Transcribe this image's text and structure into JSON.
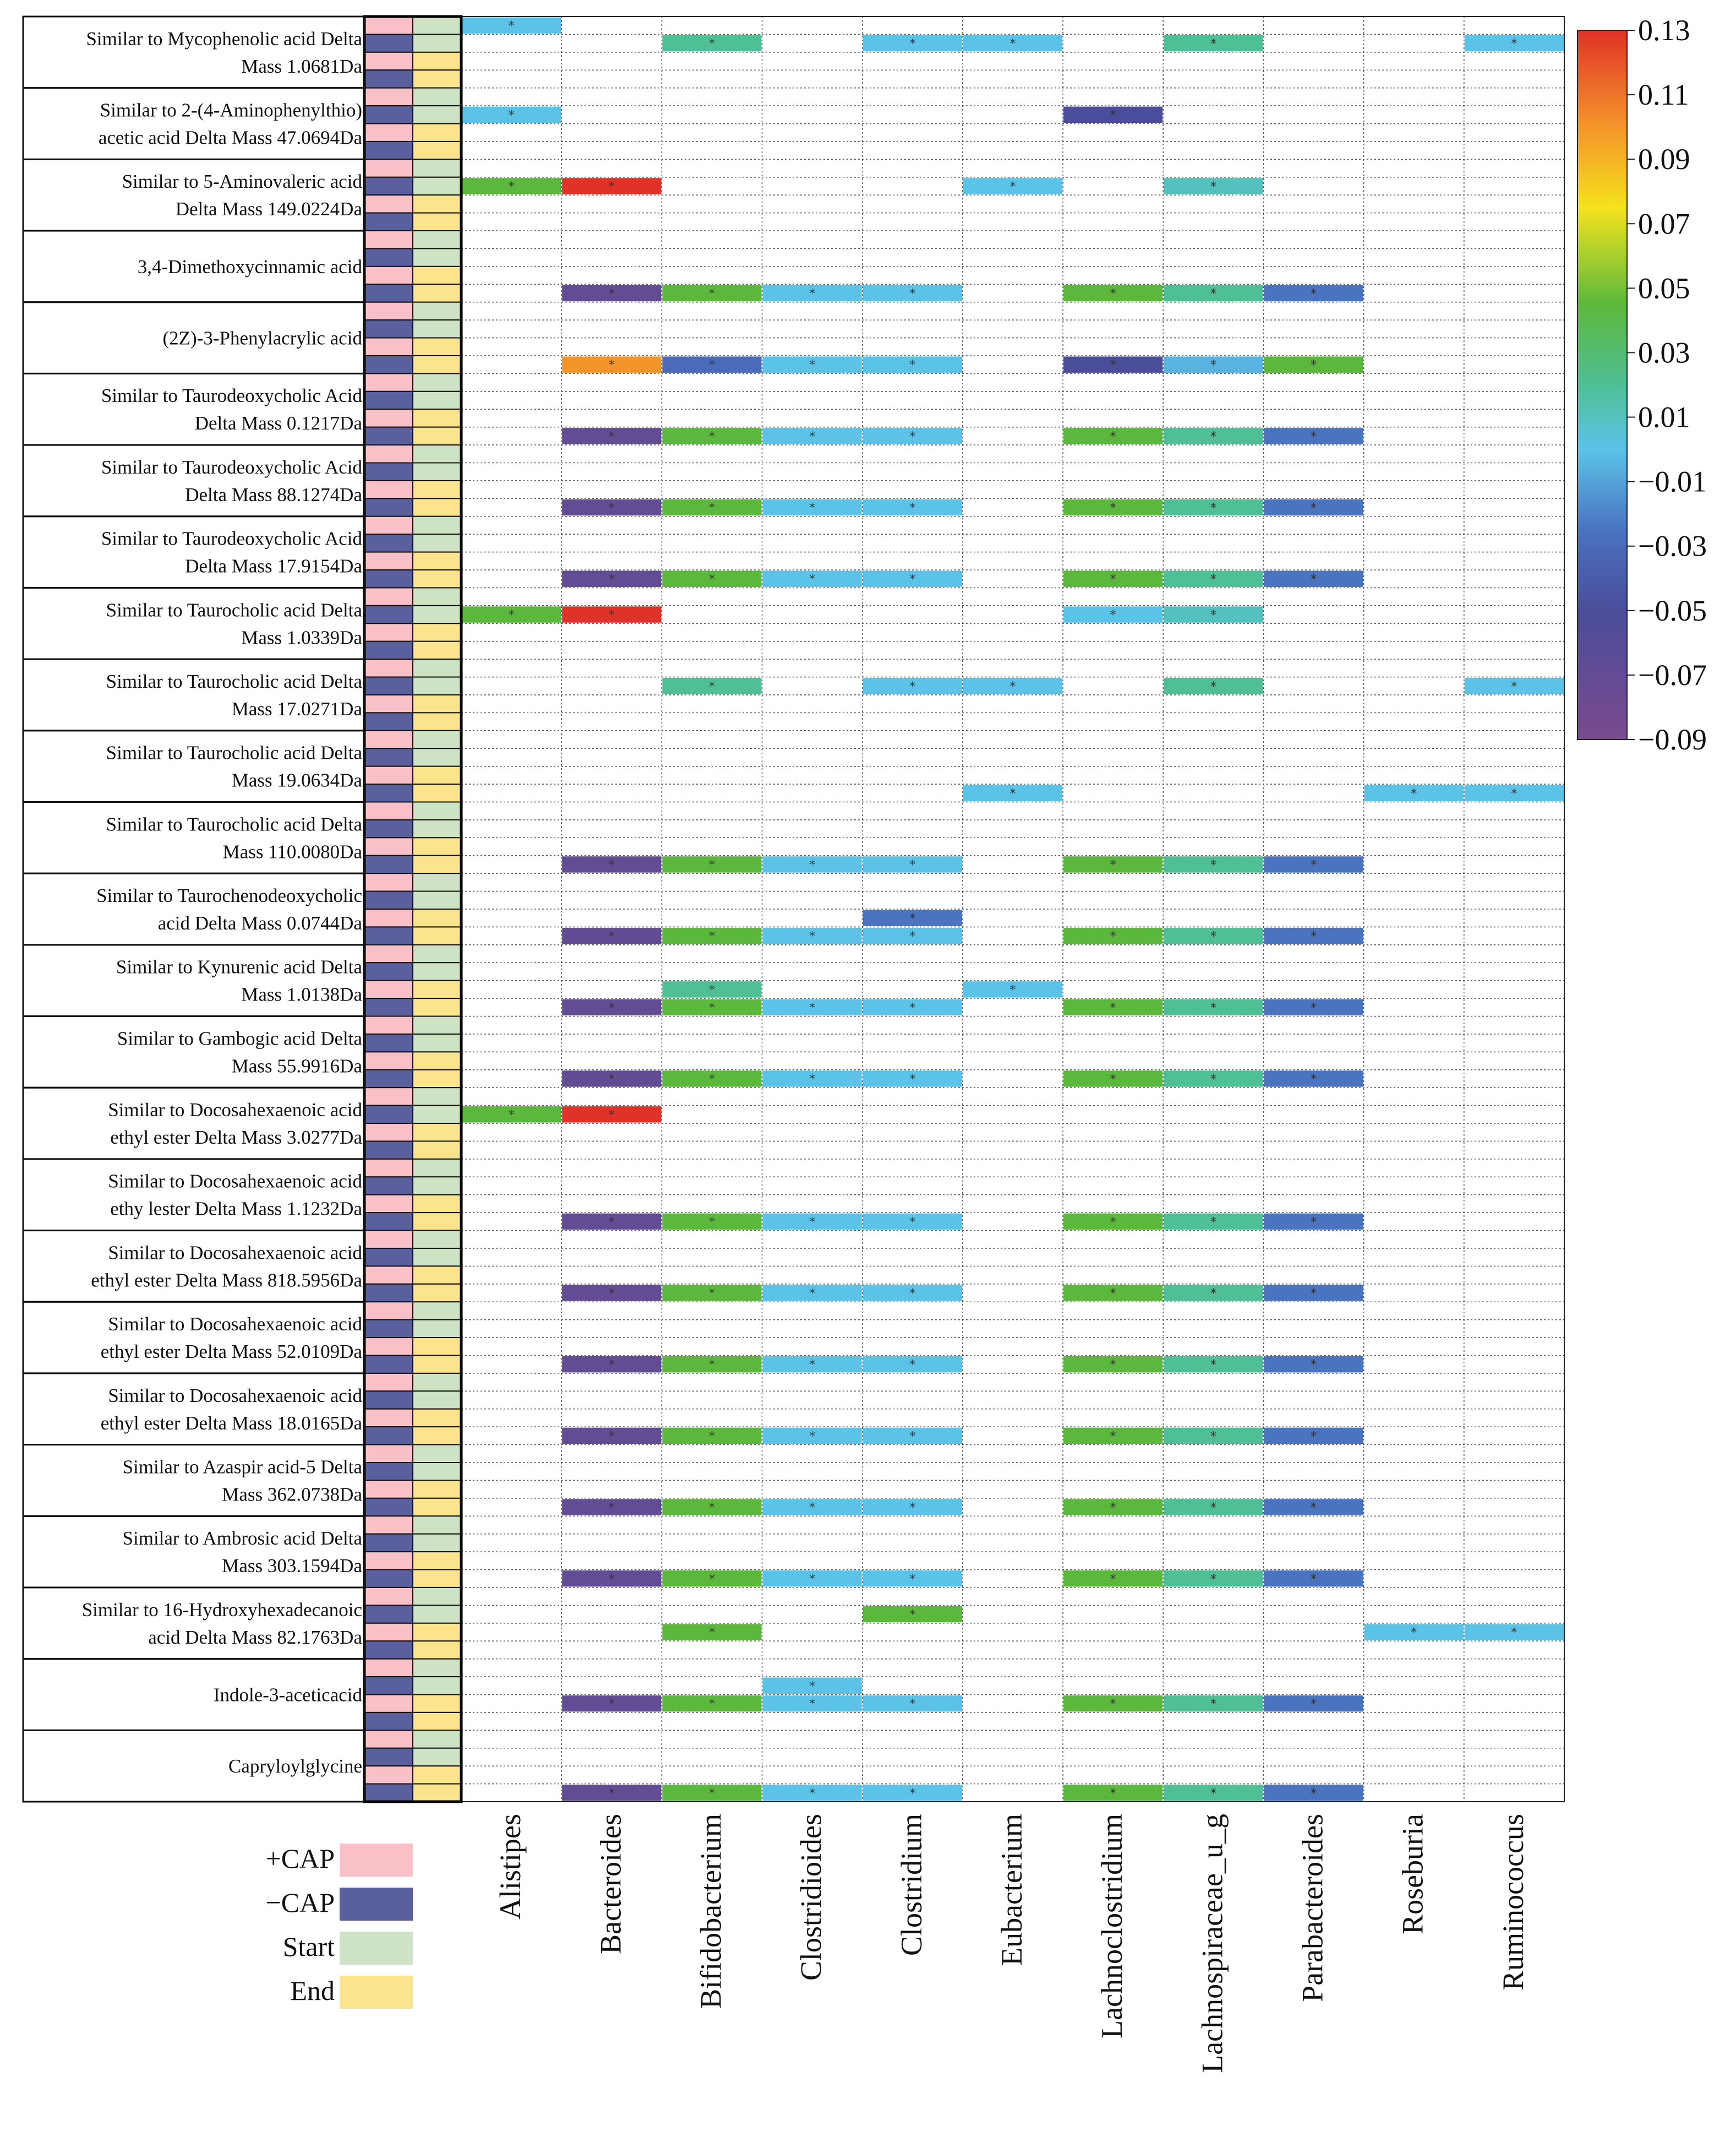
{
  "chart_data": {
    "type": "heatmap",
    "title": "",
    "metabolites": [
      [
        "Similar to Mycophenolic acid Delta",
        "Mass 1.0681Da"
      ],
      [
        "Similar to 2-(4-Aminophenylthio)",
        "acetic acid Delta Mass 47.0694Da"
      ],
      [
        "Similar to 5-Aminovaleric acid",
        "Delta Mass 149.0224Da"
      ],
      [
        "3,4-Dimethoxycinnamic acid"
      ],
      [
        "(2Z)-3-Phenylacrylic acid"
      ],
      [
        "Similar to Taurodeoxycholic Acid",
        "Delta Mass 0.1217Da"
      ],
      [
        "Similar to Taurodeoxycholic Acid",
        "Delta Mass 88.1274Da"
      ],
      [
        "Similar to Taurodeoxycholic Acid",
        "Delta Mass 17.9154Da"
      ],
      [
        "Similar to Taurocholic acid Delta",
        "Mass 1.0339Da"
      ],
      [
        "Similar to Taurocholic acid Delta",
        "Mass 17.0271Da"
      ],
      [
        "Similar to Taurocholic acid Delta",
        "Mass 19.0634Da"
      ],
      [
        "Similar to Taurocholic acid Delta",
        "Mass 110.0080Da"
      ],
      [
        "Similar to Taurochenodeoxycholic",
        "acid Delta Mass 0.0744Da"
      ],
      [
        "Similar to Kynurenic acid Delta",
        "Mass 1.0138Da"
      ],
      [
        "Similar to Gambogic acid Delta",
        "Mass 55.9916Da"
      ],
      [
        "Similar to Docosahexaenoic acid",
        "ethyl ester Delta Mass 3.0277Da"
      ],
      [
        "Similar to Docosahexaenoic acid",
        "ethy lester Delta Mass 1.1232Da"
      ],
      [
        "Similar to Docosahexaenoic acid",
        "ethyl ester Delta Mass 818.5956Da"
      ],
      [
        "Similar to Docosahexaenoic acid",
        "ethyl ester Delta Mass 52.0109Da"
      ],
      [
        "Similar to Docosahexaenoic acid",
        "ethyl ester Delta Mass 18.0165Da"
      ],
      [
        "Similar to Azaspir acid-5 Delta",
        "Mass 362.0738Da"
      ],
      [
        "Similar to  Ambrosic acid Delta",
        "Mass 303.1594Da"
      ],
      [
        "Similar to 16-Hydroxyhexadecanoic",
        "acid Delta Mass 82.1763Da"
      ],
      [
        "Indole-3-aceticacid"
      ],
      [
        "Capryloylglycine"
      ]
    ],
    "genera": [
      "Alistipes",
      "Bacteroides",
      "Bifidobacterium",
      "Clostridioides",
      "Clostridium",
      "Eubacterium",
      "Lachnoclostridium",
      "Lachnospiraceae_u_g",
      "Parabacteroides",
      "Roseburia",
      "Ruminococcus"
    ],
    "subrows_per_metabolite": 4,
    "row_groups": {
      "cap": [
        "+CAP",
        "-CAP",
        "+CAP",
        "-CAP"
      ],
      "time": [
        "Start",
        "Start",
        "End",
        "End"
      ]
    },
    "legend": [
      {
        "label": "+CAP",
        "color": "#f9c0c8"
      },
      {
        "label": "−CAP",
        "color": "#5a5f9e"
      },
      {
        "label": "Start",
        "color": "#cde3c3"
      },
      {
        "label": "End",
        "color": "#fbe48c"
      }
    ],
    "colorbar": {
      "min": -0.09,
      "max": 0.13,
      "ticks": [
        "0.13",
        "0.11",
        "0.09",
        "0.07",
        "0.05",
        "0.03",
        "0.01",
        "−0.01",
        "−0.03",
        "−0.05",
        "−0.07",
        "−0.09"
      ],
      "stops": [
        {
          "v": -0.09,
          "c": "#7a4a8e"
        },
        {
          "v": -0.05,
          "c": "#4a4d9a"
        },
        {
          "v": -0.025,
          "c": "#4a73c0"
        },
        {
          "v": 0.0,
          "c": "#5bc3e8"
        },
        {
          "v": 0.02,
          "c": "#4fbf96"
        },
        {
          "v": 0.045,
          "c": "#5cb83c"
        },
        {
          "v": 0.06,
          "c": "#a8cf2e"
        },
        {
          "v": 0.075,
          "c": "#f5e21c"
        },
        {
          "v": 0.1,
          "c": "#f4952a"
        },
        {
          "v": 0.13,
          "c": "#e03228"
        }
      ]
    },
    "significance_marker": "*",
    "cells": [
      {
        "m": 0,
        "r": 0,
        "g": 0,
        "v": 0.0
      },
      {
        "m": 0,
        "r": 1,
        "g": 2,
        "v": 0.02
      },
      {
        "m": 0,
        "r": 1,
        "g": 4,
        "v": 0.0
      },
      {
        "m": 0,
        "r": 1,
        "g": 5,
        "v": 0.0
      },
      {
        "m": 0,
        "r": 1,
        "g": 7,
        "v": 0.02
      },
      {
        "m": 0,
        "r": 1,
        "g": 10,
        "v": 0.0
      },
      {
        "m": 1,
        "r": 1,
        "g": 0,
        "v": 0.0
      },
      {
        "m": 1,
        "r": 1,
        "g": 6,
        "v": -0.05
      },
      {
        "m": 2,
        "r": 1,
        "g": 0,
        "v": 0.045
      },
      {
        "m": 2,
        "r": 1,
        "g": 1,
        "v": 0.13
      },
      {
        "m": 2,
        "r": 1,
        "g": 5,
        "v": 0.0
      },
      {
        "m": 2,
        "r": 1,
        "g": 7,
        "v": 0.01
      },
      {
        "m": 3,
        "r": 3,
        "g": 1,
        "v": -0.07
      },
      {
        "m": 3,
        "r": 3,
        "g": 2,
        "v": 0.045
      },
      {
        "m": 3,
        "r": 3,
        "g": 3,
        "v": 0.0
      },
      {
        "m": 3,
        "r": 3,
        "g": 4,
        "v": 0.0
      },
      {
        "m": 3,
        "r": 3,
        "g": 6,
        "v": 0.045
      },
      {
        "m": 3,
        "r": 3,
        "g": 7,
        "v": 0.02
      },
      {
        "m": 3,
        "r": 3,
        "g": 8,
        "v": -0.025
      },
      {
        "m": 4,
        "r": 3,
        "g": 1,
        "v": 0.1
      },
      {
        "m": 4,
        "r": 3,
        "g": 2,
        "v": -0.03
      },
      {
        "m": 4,
        "r": 3,
        "g": 3,
        "v": 0.0
      },
      {
        "m": 4,
        "r": 3,
        "g": 4,
        "v": 0.0
      },
      {
        "m": 4,
        "r": 3,
        "g": 6,
        "v": -0.05
      },
      {
        "m": 4,
        "r": 3,
        "g": 7,
        "v": -0.005
      },
      {
        "m": 4,
        "r": 3,
        "g": 8,
        "v": 0.045
      },
      {
        "m": 5,
        "r": 3,
        "g": 1,
        "v": -0.07
      },
      {
        "m": 5,
        "r": 3,
        "g": 2,
        "v": 0.045
      },
      {
        "m": 5,
        "r": 3,
        "g": 3,
        "v": 0.0
      },
      {
        "m": 5,
        "r": 3,
        "g": 4,
        "v": 0.0
      },
      {
        "m": 5,
        "r": 3,
        "g": 6,
        "v": 0.045
      },
      {
        "m": 5,
        "r": 3,
        "g": 7,
        "v": 0.02
      },
      {
        "m": 5,
        "r": 3,
        "g": 8,
        "v": -0.025
      },
      {
        "m": 6,
        "r": 3,
        "g": 1,
        "v": -0.07
      },
      {
        "m": 6,
        "r": 3,
        "g": 2,
        "v": 0.045
      },
      {
        "m": 6,
        "r": 3,
        "g": 3,
        "v": 0.0
      },
      {
        "m": 6,
        "r": 3,
        "g": 4,
        "v": 0.0
      },
      {
        "m": 6,
        "r": 3,
        "g": 6,
        "v": 0.045
      },
      {
        "m": 6,
        "r": 3,
        "g": 7,
        "v": 0.02
      },
      {
        "m": 6,
        "r": 3,
        "g": 8,
        "v": -0.025
      },
      {
        "m": 7,
        "r": 3,
        "g": 1,
        "v": -0.07
      },
      {
        "m": 7,
        "r": 3,
        "g": 2,
        "v": 0.045
      },
      {
        "m": 7,
        "r": 3,
        "g": 3,
        "v": 0.0
      },
      {
        "m": 7,
        "r": 3,
        "g": 4,
        "v": 0.0
      },
      {
        "m": 7,
        "r": 3,
        "g": 6,
        "v": 0.045
      },
      {
        "m": 7,
        "r": 3,
        "g": 7,
        "v": 0.02
      },
      {
        "m": 7,
        "r": 3,
        "g": 8,
        "v": -0.025
      },
      {
        "m": 8,
        "r": 1,
        "g": 0,
        "v": 0.045
      },
      {
        "m": 8,
        "r": 1,
        "g": 1,
        "v": 0.13
      },
      {
        "m": 8,
        "r": 1,
        "g": 6,
        "v": 0.0
      },
      {
        "m": 8,
        "r": 1,
        "g": 7,
        "v": 0.01
      },
      {
        "m": 9,
        "r": 1,
        "g": 2,
        "v": 0.02
      },
      {
        "m": 9,
        "r": 1,
        "g": 4,
        "v": 0.0
      },
      {
        "m": 9,
        "r": 1,
        "g": 5,
        "v": 0.0
      },
      {
        "m": 9,
        "r": 1,
        "g": 7,
        "v": 0.02
      },
      {
        "m": 9,
        "r": 1,
        "g": 10,
        "v": 0.0
      },
      {
        "m": 10,
        "r": 3,
        "g": 5,
        "v": 0.0
      },
      {
        "m": 10,
        "r": 3,
        "g": 9,
        "v": 0.0
      },
      {
        "m": 10,
        "r": 3,
        "g": 10,
        "v": 0.0
      },
      {
        "m": 11,
        "r": 3,
        "g": 1,
        "v": -0.07
      },
      {
        "m": 11,
        "r": 3,
        "g": 2,
        "v": 0.045
      },
      {
        "m": 11,
        "r": 3,
        "g": 3,
        "v": 0.0
      },
      {
        "m": 11,
        "r": 3,
        "g": 4,
        "v": 0.0
      },
      {
        "m": 11,
        "r": 3,
        "g": 6,
        "v": 0.045
      },
      {
        "m": 11,
        "r": 3,
        "g": 7,
        "v": 0.02
      },
      {
        "m": 11,
        "r": 3,
        "g": 8,
        "v": -0.025
      },
      {
        "m": 12,
        "r": 2,
        "g": 4,
        "v": -0.025
      },
      {
        "m": 12,
        "r": 3,
        "g": 1,
        "v": -0.07
      },
      {
        "m": 12,
        "r": 3,
        "g": 2,
        "v": 0.045
      },
      {
        "m": 12,
        "r": 3,
        "g": 3,
        "v": 0.0
      },
      {
        "m": 12,
        "r": 3,
        "g": 4,
        "v": 0.0
      },
      {
        "m": 12,
        "r": 3,
        "g": 6,
        "v": 0.045
      },
      {
        "m": 12,
        "r": 3,
        "g": 7,
        "v": 0.02
      },
      {
        "m": 12,
        "r": 3,
        "g": 8,
        "v": -0.025
      },
      {
        "m": 13,
        "r": 2,
        "g": 2,
        "v": 0.02
      },
      {
        "m": 13,
        "r": 2,
        "g": 5,
        "v": 0.0
      },
      {
        "m": 13,
        "r": 3,
        "g": 1,
        "v": -0.07
      },
      {
        "m": 13,
        "r": 3,
        "g": 2,
        "v": 0.045
      },
      {
        "m": 13,
        "r": 3,
        "g": 3,
        "v": 0.0
      },
      {
        "m": 13,
        "r": 3,
        "g": 4,
        "v": 0.0
      },
      {
        "m": 13,
        "r": 3,
        "g": 6,
        "v": 0.045
      },
      {
        "m": 13,
        "r": 3,
        "g": 7,
        "v": 0.02
      },
      {
        "m": 13,
        "r": 3,
        "g": 8,
        "v": -0.025
      },
      {
        "m": 14,
        "r": 3,
        "g": 1,
        "v": -0.07
      },
      {
        "m": 14,
        "r": 3,
        "g": 2,
        "v": 0.045
      },
      {
        "m": 14,
        "r": 3,
        "g": 3,
        "v": 0.0
      },
      {
        "m": 14,
        "r": 3,
        "g": 4,
        "v": 0.0
      },
      {
        "m": 14,
        "r": 3,
        "g": 6,
        "v": 0.045
      },
      {
        "m": 14,
        "r": 3,
        "g": 7,
        "v": 0.02
      },
      {
        "m": 14,
        "r": 3,
        "g": 8,
        "v": -0.025
      },
      {
        "m": 15,
        "r": 1,
        "g": 0,
        "v": 0.045
      },
      {
        "m": 15,
        "r": 1,
        "g": 1,
        "v": 0.13
      },
      {
        "m": 16,
        "r": 3,
        "g": 1,
        "v": -0.07
      },
      {
        "m": 16,
        "r": 3,
        "g": 2,
        "v": 0.045
      },
      {
        "m": 16,
        "r": 3,
        "g": 3,
        "v": 0.0
      },
      {
        "m": 16,
        "r": 3,
        "g": 4,
        "v": 0.0
      },
      {
        "m": 16,
        "r": 3,
        "g": 6,
        "v": 0.045
      },
      {
        "m": 16,
        "r": 3,
        "g": 7,
        "v": 0.02
      },
      {
        "m": 16,
        "r": 3,
        "g": 8,
        "v": -0.025
      },
      {
        "m": 17,
        "r": 3,
        "g": 1,
        "v": -0.07
      },
      {
        "m": 17,
        "r": 3,
        "g": 2,
        "v": 0.045
      },
      {
        "m": 17,
        "r": 3,
        "g": 3,
        "v": 0.0
      },
      {
        "m": 17,
        "r": 3,
        "g": 4,
        "v": 0.0
      },
      {
        "m": 17,
        "r": 3,
        "g": 6,
        "v": 0.045
      },
      {
        "m": 17,
        "r": 3,
        "g": 7,
        "v": 0.02
      },
      {
        "m": 17,
        "r": 3,
        "g": 8,
        "v": -0.025
      },
      {
        "m": 18,
        "r": 3,
        "g": 1,
        "v": -0.07
      },
      {
        "m": 18,
        "r": 3,
        "g": 2,
        "v": 0.045
      },
      {
        "m": 18,
        "r": 3,
        "g": 3,
        "v": 0.0
      },
      {
        "m": 18,
        "r": 3,
        "g": 4,
        "v": 0.0
      },
      {
        "m": 18,
        "r": 3,
        "g": 6,
        "v": 0.045
      },
      {
        "m": 18,
        "r": 3,
        "g": 7,
        "v": 0.02
      },
      {
        "m": 18,
        "r": 3,
        "g": 8,
        "v": -0.025
      },
      {
        "m": 19,
        "r": 3,
        "g": 1,
        "v": -0.07
      },
      {
        "m": 19,
        "r": 3,
        "g": 2,
        "v": 0.045
      },
      {
        "m": 19,
        "r": 3,
        "g": 3,
        "v": 0.0
      },
      {
        "m": 19,
        "r": 3,
        "g": 4,
        "v": 0.0
      },
      {
        "m": 19,
        "r": 3,
        "g": 6,
        "v": 0.045
      },
      {
        "m": 19,
        "r": 3,
        "g": 7,
        "v": 0.02
      },
      {
        "m": 19,
        "r": 3,
        "g": 8,
        "v": -0.025
      },
      {
        "m": 20,
        "r": 3,
        "g": 1,
        "v": -0.07
      },
      {
        "m": 20,
        "r": 3,
        "g": 2,
        "v": 0.045
      },
      {
        "m": 20,
        "r": 3,
        "g": 3,
        "v": 0.0
      },
      {
        "m": 20,
        "r": 3,
        "g": 4,
        "v": 0.0
      },
      {
        "m": 20,
        "r": 3,
        "g": 6,
        "v": 0.045
      },
      {
        "m": 20,
        "r": 3,
        "g": 7,
        "v": 0.02
      },
      {
        "m": 20,
        "r": 3,
        "g": 8,
        "v": -0.025
      },
      {
        "m": 21,
        "r": 3,
        "g": 1,
        "v": -0.07
      },
      {
        "m": 21,
        "r": 3,
        "g": 2,
        "v": 0.045
      },
      {
        "m": 21,
        "r": 3,
        "g": 3,
        "v": 0.0
      },
      {
        "m": 21,
        "r": 3,
        "g": 4,
        "v": 0.0
      },
      {
        "m": 21,
        "r": 3,
        "g": 6,
        "v": 0.045
      },
      {
        "m": 21,
        "r": 3,
        "g": 7,
        "v": 0.02
      },
      {
        "m": 21,
        "r": 3,
        "g": 8,
        "v": -0.025
      },
      {
        "m": 22,
        "r": 1,
        "g": 4,
        "v": 0.045
      },
      {
        "m": 22,
        "r": 2,
        "g": 2,
        "v": 0.045
      },
      {
        "m": 22,
        "r": 2,
        "g": 9,
        "v": 0.0
      },
      {
        "m": 22,
        "r": 2,
        "g": 10,
        "v": 0.0
      },
      {
        "m": 23,
        "r": 1,
        "g": 3,
        "v": 0.0
      },
      {
        "m": 23,
        "r": 2,
        "g": 1,
        "v": -0.07
      },
      {
        "m": 23,
        "r": 2,
        "g": 2,
        "v": 0.045
      },
      {
        "m": 23,
        "r": 2,
        "g": 3,
        "v": 0.0
      },
      {
        "m": 23,
        "r": 2,
        "g": 4,
        "v": 0.0
      },
      {
        "m": 23,
        "r": 2,
        "g": 6,
        "v": 0.045
      },
      {
        "m": 23,
        "r": 2,
        "g": 7,
        "v": 0.02
      },
      {
        "m": 23,
        "r": 2,
        "g": 8,
        "v": -0.025
      },
      {
        "m": 24,
        "r": 3,
        "g": 1,
        "v": -0.07
      },
      {
        "m": 24,
        "r": 3,
        "g": 2,
        "v": 0.045
      },
      {
        "m": 24,
        "r": 3,
        "g": 3,
        "v": 0.0
      },
      {
        "m": 24,
        "r": 3,
        "g": 4,
        "v": 0.0
      },
      {
        "m": 24,
        "r": 3,
        "g": 6,
        "v": 0.045
      },
      {
        "m": 24,
        "r": 3,
        "g": 7,
        "v": 0.02
      },
      {
        "m": 24,
        "r": 3,
        "g": 8,
        "v": -0.025
      }
    ]
  }
}
